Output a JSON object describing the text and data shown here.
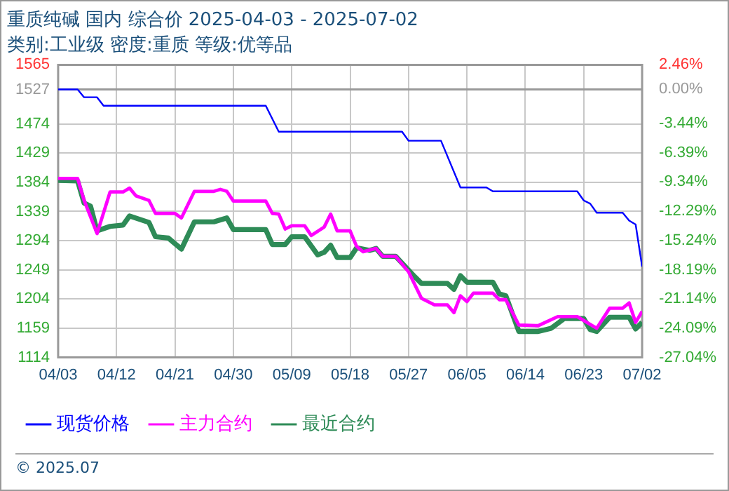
{
  "chart_data": {
    "type": "line",
    "title": "重质纯碱 国内 综合价 2025-04-03 - 2025-07-02",
    "subtitle": "类别:工业级 密度:重质 等级:优等品",
    "series": [
      {
        "name": "现货价格",
        "color": "#0000ff",
        "x": [
          "2025-04-03",
          "2025-04-06",
          "2025-04-07",
          "2025-04-09",
          "2025-04-10",
          "2025-05-05",
          "2025-05-07",
          "2025-05-26",
          "2025-05-27",
          "2025-06-01",
          "2025-06-04",
          "2025-06-08",
          "2025-06-09",
          "2025-06-22",
          "2025-06-23",
          "2025-06-24",
          "2025-06-25",
          "2025-06-29",
          "2025-06-30",
          "2025-07-01",
          "2025-07-02"
        ],
        "values": [
          1527,
          1527,
          1515,
          1515,
          1502,
          1502,
          1462,
          1462,
          1448,
          1448,
          1376,
          1376,
          1370,
          1370,
          1356,
          1351,
          1337,
          1337,
          1325,
          1319,
          1254
        ]
      },
      {
        "name": "主力合约",
        "color": "#ff00ff",
        "x": [
          "2025-04-03",
          "2025-04-06",
          "2025-04-07",
          "2025-04-09",
          "2025-04-11",
          "2025-04-13",
          "2025-04-14",
          "2025-04-15",
          "2025-04-17",
          "2025-04-18",
          "2025-04-21",
          "2025-04-22",
          "2025-04-24",
          "2025-04-27",
          "2025-04-28",
          "2025-04-29",
          "2025-04-30",
          "2025-05-05",
          "2025-05-06",
          "2025-05-07",
          "2025-05-08",
          "2025-05-09",
          "2025-05-11",
          "2025-05-12",
          "2025-05-14",
          "2025-05-15",
          "2025-05-16",
          "2025-05-18",
          "2025-05-19",
          "2025-05-20",
          "2025-05-22",
          "2025-05-23",
          "2025-05-25",
          "2025-05-27",
          "2025-05-29",
          "2025-05-31",
          "2025-06-02",
          "2025-06-03",
          "2025-06-04",
          "2025-06-05",
          "2025-06-06",
          "2025-06-09",
          "2025-06-10",
          "2025-06-11",
          "2025-06-13",
          "2025-06-16",
          "2025-06-19",
          "2025-06-22",
          "2025-06-25",
          "2025-06-27",
          "2025-06-29",
          "2025-06-30",
          "2025-07-01",
          "2025-07-02"
        ],
        "values": [
          1390,
          1390,
          1356,
          1305,
          1369,
          1369,
          1375,
          1363,
          1356,
          1336,
          1336,
          1329,
          1370,
          1370,
          1373,
          1370,
          1355,
          1355,
          1336,
          1335,
          1312,
          1317,
          1317,
          1302,
          1315,
          1335,
          1309,
          1309,
          1285,
          1277,
          1282,
          1270,
          1270,
          1246,
          1205,
          1195,
          1195,
          1183,
          1209,
          1200,
          1213,
          1213,
          1203,
          1203,
          1164,
          1163,
          1177,
          1177,
          1159,
          1190,
          1190,
          1198,
          1168,
          1185
        ]
      },
      {
        "name": "最近合约",
        "color": "#2e8b57",
        "x": [
          "2025-04-03",
          "2025-04-06",
          "2025-04-07",
          "2025-04-08",
          "2025-04-09",
          "2025-04-11",
          "2025-04-13",
          "2025-04-14",
          "2025-04-17",
          "2025-04-18",
          "2025-04-20",
          "2025-04-22",
          "2025-04-24",
          "2025-04-27",
          "2025-04-29",
          "2025-04-30",
          "2025-05-05",
          "2025-05-06",
          "2025-05-08",
          "2025-05-09",
          "2025-05-11",
          "2025-05-13",
          "2025-05-14",
          "2025-05-15",
          "2025-05-16",
          "2025-05-18",
          "2025-05-19",
          "2025-05-21",
          "2025-05-22",
          "2025-05-23",
          "2025-05-25",
          "2025-05-28",
          "2025-05-29",
          "2025-06-02",
          "2025-06-03",
          "2025-06-04",
          "2025-06-05",
          "2025-06-09",
          "2025-06-10",
          "2025-06-11",
          "2025-06-13",
          "2025-06-16",
          "2025-06-18",
          "2025-06-20",
          "2025-06-23",
          "2025-06-24",
          "2025-06-25",
          "2025-06-27",
          "2025-06-30",
          "2025-07-01",
          "2025-07-02"
        ],
        "values": [
          1387,
          1386,
          1352,
          1347,
          1309,
          1316,
          1318,
          1332,
          1322,
          1300,
          1298,
          1281,
          1323,
          1323,
          1329,
          1311,
          1311,
          1288,
          1288,
          1300,
          1300,
          1272,
          1276,
          1287,
          1268,
          1268,
          1283,
          1279,
          1282,
          1270,
          1270,
          1238,
          1228,
          1228,
          1219,
          1240,
          1230,
          1230,
          1212,
          1209,
          1154,
          1154,
          1159,
          1174,
          1174,
          1157,
          1154,
          1176,
          1176,
          1158,
          1168
        ]
      }
    ],
    "xlim": [
      "2025-04-03",
      "2025-07-02"
    ],
    "xticks": [
      {
        "value": "2025-04-03",
        "label": "04/03"
      },
      {
        "value": "2025-04-12",
        "label": "04/12"
      },
      {
        "value": "2025-04-21",
        "label": "04/21"
      },
      {
        "value": "2025-04-30",
        "label": "04/30"
      },
      {
        "value": "2025-05-09",
        "label": "05/09"
      },
      {
        "value": "2025-05-18",
        "label": "05/18"
      },
      {
        "value": "2025-05-27",
        "label": "05/27"
      },
      {
        "value": "2025-06-05",
        "label": "06/05"
      },
      {
        "value": "2025-06-14",
        "label": "06/14"
      },
      {
        "value": "2025-06-23",
        "label": "06/23"
      },
      {
        "value": "2025-07-02",
        "label": "07/02"
      }
    ],
    "ylim": [
      1114,
      1565
    ],
    "yticks": [
      1114,
      1159,
      1204,
      1249,
      1294,
      1339,
      1384,
      1429,
      1474,
      1527,
      1565
    ],
    "y2lim": [
      -27.04,
      2.46
    ],
    "y2ticks": [
      {
        "value": -27.04,
        "label": "-27.04%"
      },
      {
        "value": -24.09,
        "label": "-24.09%"
      },
      {
        "value": -21.14,
        "label": "-21.14%"
      },
      {
        "value": -18.19,
        "label": "-18.19%"
      },
      {
        "value": -15.24,
        "label": "-15.24%"
      },
      {
        "value": -12.29,
        "label": "-12.29%"
      },
      {
        "value": -9.34,
        "label": "-9.34%"
      },
      {
        "value": -6.39,
        "label": "-6.39%"
      },
      {
        "value": -3.44,
        "label": "-3.44%"
      },
      {
        "value": 0,
        "label": "0.00%"
      },
      {
        "value": 2.46,
        "label": "2.46%"
      }
    ],
    "ref_lines": [
      {
        "axis": "y",
        "value": 1527,
        "color": "#999999"
      }
    ],
    "annotations": [
      "© 2025.07"
    ],
    "grid": true,
    "legend": "bottom",
    "marker": "none",
    "line_style": "solid"
  }
}
